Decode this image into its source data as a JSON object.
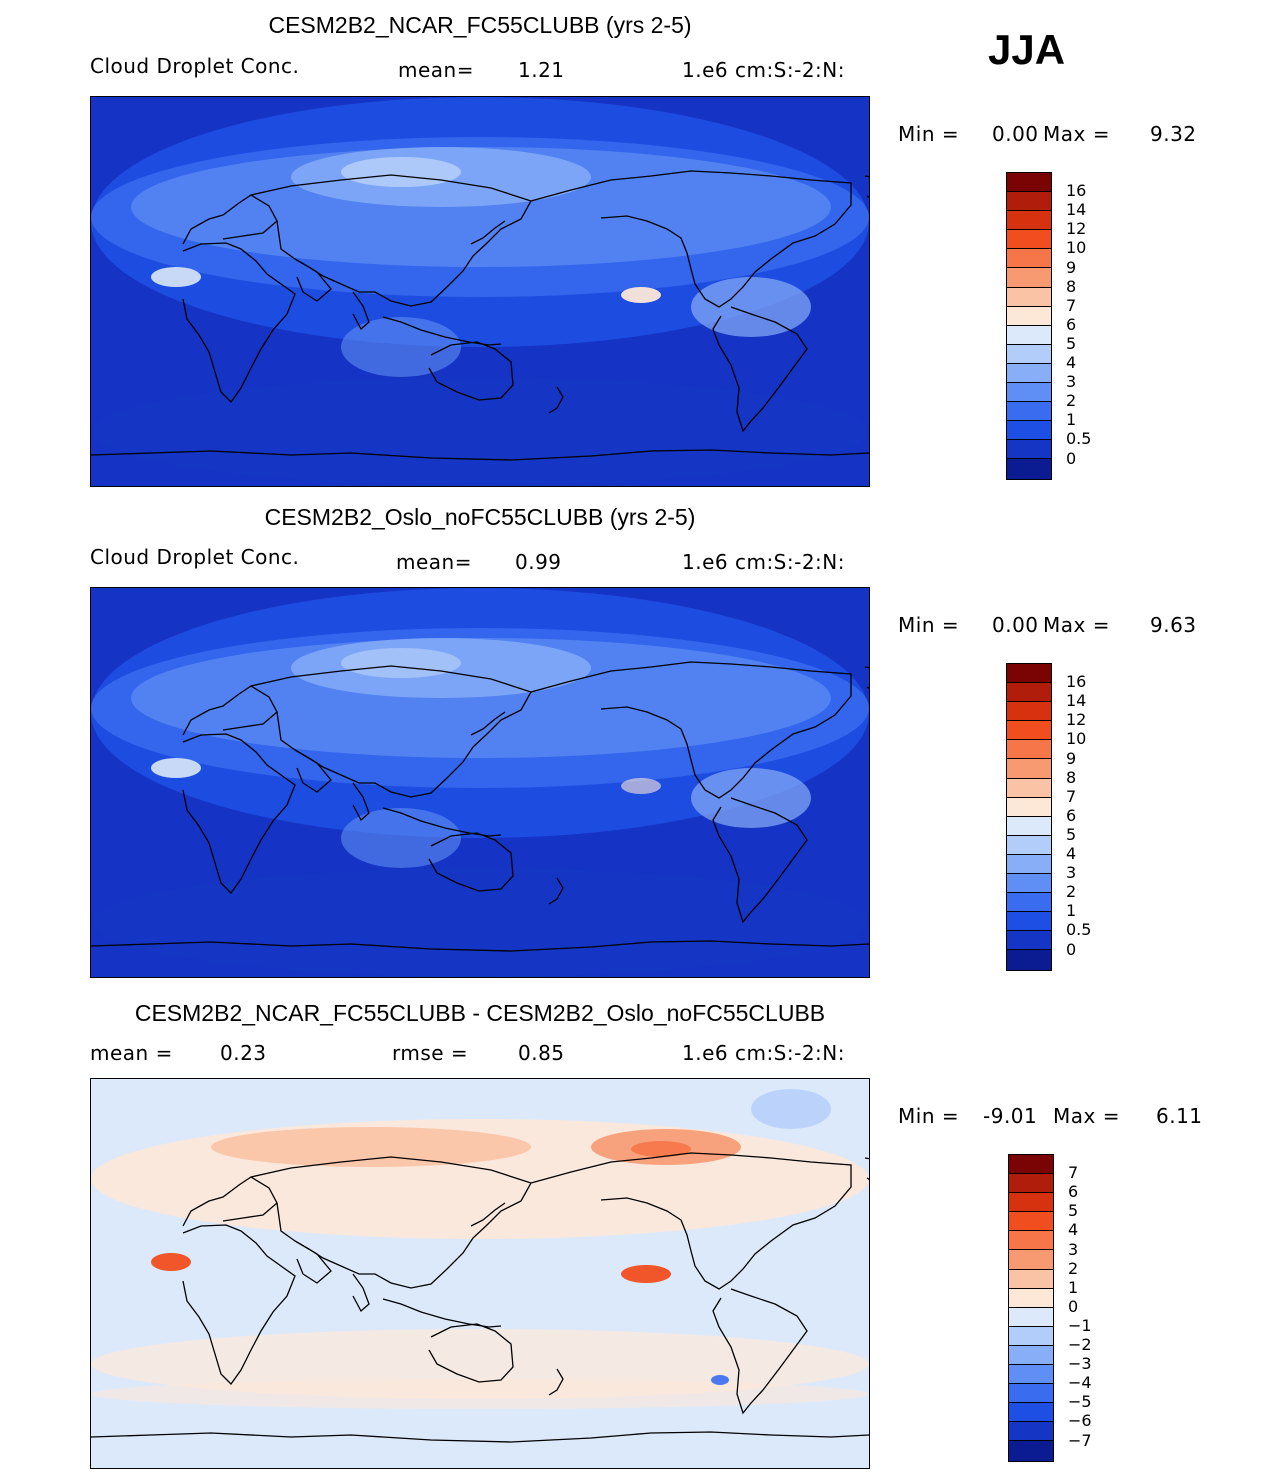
{
  "season": "JJA",
  "panels": [
    {
      "title": "CESM2B2_NCAR_FC55CLUBB (yrs 2-5)",
      "variable": "Cloud Droplet Conc.",
      "stat1": "mean=",
      "stat1_value": "1.21",
      "stat2": "",
      "stat2_value": "",
      "units": "1.e6 cm:S:-2:N:",
      "min_label": "Min =",
      "min_value": "0.00",
      "max_label": "Max =",
      "max_value": "9.32",
      "colors": [
        "#7a0403",
        "#b01d0b",
        "#d7320f",
        "#f04e1f",
        "#f6764a",
        "#f79a72",
        "#fbc3a5",
        "#fde8d8",
        "#dce9fb",
        "#b3cdfa",
        "#88aef8",
        "#5f8ef4",
        "#3a6cf0",
        "#1e4fe4",
        "#1535c5",
        "#0b1c92"
      ],
      "labels": [
        "16",
        "14",
        "12",
        "10",
        "9",
        "8",
        "7",
        "6",
        "5",
        "4",
        "3",
        "2",
        "1",
        "0.5",
        "0"
      ],
      "base_color": "#1533c4"
    },
    {
      "title": "CESM2B2_Oslo_noFC55CLUBB (yrs 2-5)",
      "variable": "Cloud Droplet Conc.",
      "stat1": "mean=",
      "stat1_value": "0.99",
      "stat2": "",
      "stat2_value": "",
      "units": "1.e6 cm:S:-2:N:",
      "min_label": "Min =",
      "min_value": "0.00",
      "max_label": "Max =",
      "max_value": "9.63",
      "colors": [
        "#7a0403",
        "#b01d0b",
        "#d7320f",
        "#f04e1f",
        "#f6764a",
        "#f79a72",
        "#fbc3a5",
        "#fde8d8",
        "#dce9fb",
        "#b3cdfa",
        "#88aef8",
        "#5f8ef4",
        "#3a6cf0",
        "#1e4fe4",
        "#1535c5",
        "#0b1c92"
      ],
      "labels": [
        "16",
        "14",
        "12",
        "10",
        "9",
        "8",
        "7",
        "6",
        "5",
        "4",
        "3",
        "2",
        "1",
        "0.5",
        "0"
      ],
      "base_color": "#1533c4"
    },
    {
      "title": "CESM2B2_NCAR_FC55CLUBB - CESM2B2_Oslo_noFC55CLUBB",
      "variable": "",
      "stat1": "mean =",
      "stat1_value": "0.23",
      "stat2": "rmse =",
      "stat2_value": "0.85",
      "units": "1.e6 cm:S:-2:N:",
      "min_label": "Min =",
      "min_value": "-9.01",
      "max_label": "Max =",
      "max_value": "6.11",
      "colors": [
        "#7a0403",
        "#b01d0b",
        "#d7320f",
        "#f04e1f",
        "#f6764a",
        "#f79a72",
        "#fbc3a5",
        "#fde8d8",
        "#dce9fb",
        "#b3cdfa",
        "#88aef8",
        "#5f8ef4",
        "#3a6cf0",
        "#1e4fe4",
        "#1535c5",
        "#0b1c92"
      ],
      "labels": [
        "7",
        "6",
        "5",
        "4",
        "3",
        "2",
        "1",
        "0",
        "-1",
        "-2",
        "-3",
        "-4",
        "-5",
        "-6",
        "-7"
      ],
      "base_color": "#dce9fb"
    }
  ]
}
